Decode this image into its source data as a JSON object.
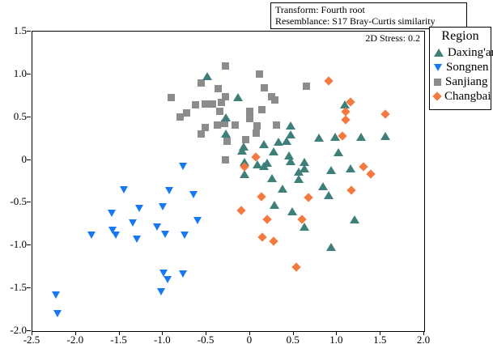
{
  "header": {
    "line1": "Transform: Fourth root",
    "line2": "Resemblance: S17 Bray-Curtis similarity"
  },
  "stress_label": "2D Stress: 0.2",
  "legend": {
    "title": "Region",
    "items": [
      {
        "label": "Daxing'an",
        "marker": "triangle-up",
        "color": "#3E7F7A"
      },
      {
        "label": "Songnen",
        "marker": "triangle-down",
        "color": "#1878F0"
      },
      {
        "label": "Sanjiang",
        "marker": "square",
        "color": "#8C8C8C"
      },
      {
        "label": "Changbai",
        "marker": "diamond",
        "color": "#F3793F"
      }
    ]
  },
  "chart_data": {
    "type": "scatter",
    "title": "",
    "xlabel": "",
    "ylabel": "",
    "xlim": [
      -2.5,
      2.0
    ],
    "ylim": [
      -2.0,
      1.5
    ],
    "grid": false,
    "legend_position": "outside-top-right",
    "x_tick_values": [
      -2.5,
      -2.0,
      -1.5,
      -1.0,
      -0.5,
      0,
      0.5,
      1.0,
      1.5,
      2.0
    ],
    "x_tick_labels": [
      "-2.5",
      "-2.0",
      "-1.5",
      "-1.0",
      "-0.5",
      "0",
      "0.5",
      "1.0",
      "1.5",
      "2.0"
    ],
    "y_tick_values": [
      1.5,
      1.0,
      0.5,
      0,
      -0.5,
      -1.0,
      -1.5,
      -2.0
    ],
    "y_tick_labels": [
      "1.5",
      "1.0",
      "0.5",
      "0",
      "-0.5",
      "-1.0",
      "-1.5",
      "-2.0"
    ],
    "series": [
      {
        "name": "Sanjiang",
        "marker": "square",
        "color": "#8C8C8C",
        "points": [
          [
            -0.28,
            1.1
          ],
          [
            0.11,
            1.0
          ],
          [
            -0.56,
            0.9
          ],
          [
            0.65,
            0.86
          ],
          [
            0.16,
            0.84
          ],
          [
            -0.37,
            0.83
          ],
          [
            -0.28,
            0.74
          ],
          [
            -0.91,
            0.73
          ],
          [
            0.25,
            0.74
          ],
          [
            0.28,
            0.7
          ],
          [
            -0.33,
            0.67
          ],
          [
            -0.43,
            0.65
          ],
          [
            -0.52,
            0.65
          ],
          [
            -0.63,
            0.64
          ],
          [
            0.14,
            0.59
          ],
          [
            -0.35,
            0.57
          ],
          [
            0.0,
            0.57
          ],
          [
            -0.73,
            0.55
          ],
          [
            -0.8,
            0.5
          ],
          [
            0.0,
            0.48
          ],
          [
            -0.29,
            0.43
          ],
          [
            -0.38,
            0.41
          ],
          [
            -0.17,
            0.41
          ],
          [
            0.08,
            0.4
          ],
          [
            0.3,
            0.41
          ],
          [
            -0.52,
            0.38
          ],
          [
            0.07,
            0.31
          ],
          [
            -0.56,
            0.3
          ],
          [
            -0.26,
            0.22
          ],
          [
            -0.05,
            0.24
          ],
          [
            -0.28,
            0.0
          ]
        ]
      },
      {
        "name": "Daxing'an",
        "marker": "triangle-up",
        "color": "#3E7F7A",
        "points": [
          [
            -0.49,
            0.98
          ],
          [
            -0.14,
            0.73
          ],
          [
            1.09,
            0.65
          ],
          [
            -0.28,
            0.5
          ],
          [
            0.47,
            0.4
          ],
          [
            -0.28,
            0.31
          ],
          [
            0.47,
            0.3
          ],
          [
            1.55,
            0.28
          ],
          [
            0.98,
            0.27
          ],
          [
            1.27,
            0.27
          ],
          [
            0.79,
            0.26
          ],
          [
            0.42,
            0.22
          ],
          [
            0.33,
            0.21
          ],
          [
            0.16,
            0.19
          ],
          [
            -0.07,
            0.16
          ],
          [
            -0.09,
            0.11
          ],
          [
            0.27,
            0.1
          ],
          [
            1.01,
            0.09
          ],
          [
            0.45,
            0.05
          ],
          [
            0.47,
            -0.01
          ],
          [
            -0.06,
            -0.02
          ],
          [
            0.62,
            -0.02
          ],
          [
            0.2,
            -0.03
          ],
          [
            0.08,
            -0.05
          ],
          [
            0.16,
            -0.07
          ],
          [
            0.62,
            -0.1
          ],
          [
            1.15,
            -0.1
          ],
          [
            0.93,
            -0.12
          ],
          [
            0.56,
            -0.14
          ],
          [
            -0.06,
            -0.16
          ],
          [
            0.25,
            -0.21
          ],
          [
            0.56,
            -0.22
          ],
          [
            0.84,
            -0.31
          ],
          [
            0.37,
            -0.33
          ],
          [
            0.9,
            -0.41
          ],
          [
            0.28,
            -0.52
          ],
          [
            0.48,
            -0.6
          ],
          [
            1.2,
            -0.69
          ],
          [
            0.62,
            -0.78
          ],
          [
            0.93,
            -1.02
          ]
        ]
      },
      {
        "name": "Songnen",
        "marker": "triangle-down",
        "color": "#1878F0",
        "points": [
          [
            -0.77,
            -0.07
          ],
          [
            -1.45,
            -0.35
          ],
          [
            -0.93,
            -0.36
          ],
          [
            -0.65,
            -0.41
          ],
          [
            -1.0,
            -0.55
          ],
          [
            -1.27,
            -0.57
          ],
          [
            -1.59,
            -0.62
          ],
          [
            -0.6,
            -0.71
          ],
          [
            -1.35,
            -0.74
          ],
          [
            -1.07,
            -0.78
          ],
          [
            -1.58,
            -0.82
          ],
          [
            -1.82,
            -0.88
          ],
          [
            -0.98,
            -0.87
          ],
          [
            -1.54,
            -0.88
          ],
          [
            -0.75,
            -0.88
          ],
          [
            -1.3,
            -0.93
          ],
          [
            -0.99,
            -1.32
          ],
          [
            -0.77,
            -1.33
          ],
          [
            -0.95,
            -1.4
          ],
          [
            -1.02,
            -1.54
          ],
          [
            -2.23,
            -1.58
          ],
          [
            -2.21,
            -1.8
          ]
        ]
      },
      {
        "name": "Changbai",
        "marker": "diamond",
        "color": "#F3793F",
        "points": [
          [
            0.9,
            0.92
          ],
          [
            1.15,
            0.68
          ],
          [
            1.1,
            0.56
          ],
          [
            1.55,
            0.54
          ],
          [
            1.1,
            0.47
          ],
          [
            1.06,
            0.28
          ],
          [
            0.07,
            0.03
          ],
          [
            -0.06,
            -0.08
          ],
          [
            1.3,
            -0.08
          ],
          [
            1.39,
            -0.16
          ],
          [
            1.16,
            -0.35
          ],
          [
            0.13,
            -0.43
          ],
          [
            0.67,
            -0.44
          ],
          [
            -0.1,
            -0.59
          ],
          [
            0.2,
            -0.69
          ],
          [
            0.6,
            -0.69
          ],
          [
            0.14,
            -0.9
          ],
          [
            0.27,
            -0.95
          ],
          [
            0.53,
            -1.25
          ]
        ]
      }
    ]
  }
}
